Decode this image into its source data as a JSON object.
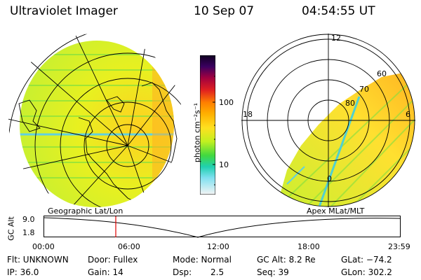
{
  "header": {
    "instrument": "Ultraviolet Imager",
    "date": "10 Sep 07",
    "time": "04:54:55 UT"
  },
  "colorbar": {
    "unit_label": "photon cm⁻²s⁻¹",
    "tick_100": "100",
    "tick_10": "10"
  },
  "panels": {
    "left_label": "Geographic Lat/Lon",
    "right_label": "Apex MLat/MLT",
    "polar_mlt": {
      "top": "12",
      "left": "18",
      "right": "6",
      "bottom": "0"
    },
    "polar_mlat": [
      "60",
      "70",
      "80"
    ]
  },
  "altitude_plot": {
    "ylabel": "GC Alt",
    "y_top": "9.0",
    "y_bottom": "1.8",
    "x_ticks": [
      "00:00",
      "06:00",
      "12:00",
      "18:00",
      "23:59"
    ],
    "marker_color": "#e00000"
  },
  "info": {
    "flt": "Flt: UNKNOWN",
    "ip": "IP: 36.0",
    "door": "Door: Fullex",
    "gain": "Gain: 14",
    "mode": "Mode: Normal",
    "dsp_label": "Dsp:",
    "dsp_value": "2.5",
    "gcalt": "GC Alt: 8.2 Re",
    "seq": "Seq: 39",
    "glat": "GLat: −74.2",
    "glon": "GLon: 302.2"
  }
}
